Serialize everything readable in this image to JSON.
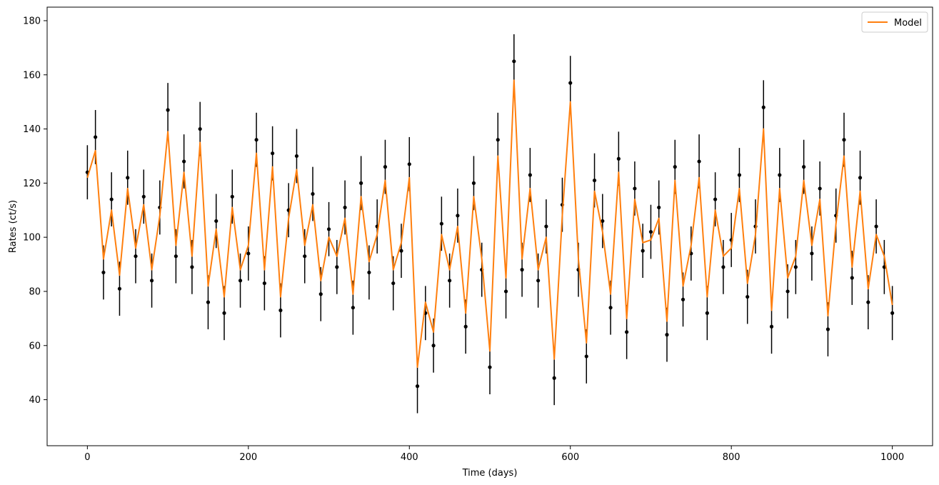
{
  "chart_data": {
    "type": "line",
    "title": "",
    "xlabel": "Time (days)",
    "ylabel": "Rates (ct/s)",
    "xlim": [
      -50,
      1050
    ],
    "ylim": [
      23,
      185
    ],
    "xticks": [
      0,
      200,
      400,
      600,
      800,
      1000
    ],
    "yticks": [
      40,
      60,
      80,
      100,
      120,
      140,
      160,
      180
    ],
    "x_tick_labels": [
      "0",
      "200",
      "400",
      "600",
      "800",
      "1000"
    ],
    "y_tick_labels": [
      "40",
      "60",
      "80",
      "100",
      "120",
      "140",
      "160",
      "180"
    ],
    "grid": false,
    "legend": {
      "placement": "top-right",
      "entries": [
        "Model"
      ]
    },
    "series": [
      {
        "name": "Model",
        "style": "line",
        "color": "#ff7f0e",
        "x": [
          0,
          10,
          20,
          30,
          40,
          50,
          60,
          70,
          80,
          90,
          100,
          110,
          120,
          130,
          140,
          150,
          160,
          170,
          180,
          190,
          200,
          210,
          220,
          230,
          240,
          250,
          260,
          270,
          280,
          290,
          300,
          310,
          320,
          330,
          340,
          350,
          360,
          370,
          380,
          390,
          400,
          410,
          420,
          430,
          440,
          450,
          460,
          470,
          480,
          490,
          500,
          510,
          520,
          530,
          540,
          550,
          560,
          570,
          580,
          590,
          600,
          610,
          620,
          630,
          640,
          650,
          660,
          670,
          680,
          690,
          700,
          710,
          720,
          730,
          740,
          750,
          760,
          770,
          780,
          790,
          800,
          810,
          820,
          830,
          840,
          850,
          860,
          870,
          880,
          890,
          900,
          910,
          920,
          930,
          940,
          950,
          960,
          970,
          980,
          990,
          1000
        ],
        "y": [
          122,
          132,
          92,
          110,
          86,
          118,
          96,
          112,
          88,
          108,
          139,
          97,
          124,
          93,
          135,
          82,
          103,
          78,
          111,
          88,
          97,
          131,
          88,
          126,
          78,
          107,
          125,
          97,
          112,
          84,
          100,
          93,
          107,
          79,
          115,
          91,
          101,
          121,
          88,
          98,
          122,
          52,
          76,
          65,
          101,
          88,
          104,
          72,
          115,
          92,
          58,
          130,
          85,
          158,
          92,
          118,
          88,
          100,
          55,
          108,
          150,
          92,
          61,
          117,
          102,
          79,
          124,
          70,
          114,
          98,
          99,
          107,
          69,
          121,
          82,
          97,
          122,
          78,
          110,
          93,
          96,
          118,
          83,
          101,
          140,
          73,
          118,
          85,
          93,
          121,
          97,
          114,
          71,
          105,
          130,
          89,
          117,
          81,
          101,
          93,
          75
        ]
      },
      {
        "name": "",
        "style": "errorbar",
        "color": "#000000",
        "x": [
          0,
          10,
          20,
          30,
          40,
          50,
          60,
          70,
          80,
          90,
          100,
          110,
          120,
          130,
          140,
          150,
          160,
          170,
          180,
          190,
          200,
          210,
          220,
          230,
          240,
          250,
          260,
          270,
          280,
          290,
          300,
          310,
          320,
          330,
          340,
          350,
          360,
          370,
          380,
          390,
          400,
          410,
          420,
          430,
          440,
          450,
          460,
          470,
          480,
          490,
          500,
          510,
          520,
          530,
          540,
          550,
          560,
          570,
          580,
          590,
          600,
          610,
          620,
          630,
          640,
          650,
          660,
          670,
          680,
          690,
          700,
          710,
          720,
          730,
          740,
          750,
          760,
          770,
          780,
          790,
          800,
          810,
          820,
          830,
          840,
          850,
          860,
          870,
          880,
          890,
          900,
          910,
          920,
          930,
          940,
          950,
          960,
          970,
          980,
          990,
          1000
        ],
        "y": [
          124,
          137,
          87,
          114,
          81,
          122,
          93,
          115,
          84,
          111,
          147,
          93,
          128,
          89,
          140,
          76,
          106,
          72,
          115,
          84,
          94,
          136,
          83,
          131,
          73,
          110,
          130,
          93,
          116,
          79,
          103,
          89,
          111,
          74,
          120,
          87,
          104,
          126,
          83,
          95,
          127,
          45,
          72,
          60,
          105,
          84,
          108,
          67,
          120,
          88,
          52,
          136,
          80,
          165,
          88,
          123,
          84,
          104,
          48,
          112,
          157,
          88,
          56,
          121,
          106,
          74,
          129,
          65,
          118,
          95,
          102,
          111,
          64,
          126,
          77,
          94,
          128,
          72,
          114,
          89,
          99,
          123,
          78,
          104,
          148,
          67,
          123,
          80,
          89,
          126,
          94,
          118,
          66,
          108,
          136,
          85,
          122,
          76,
          104,
          89,
          72
        ],
        "err": [
          10,
          10,
          10,
          10,
          10,
          10,
          10,
          10,
          10,
          10,
          10,
          10,
          10,
          10,
          10,
          10,
          10,
          10,
          10,
          10,
          10,
          10,
          10,
          10,
          10,
          10,
          10,
          10,
          10,
          10,
          10,
          10,
          10,
          10,
          10,
          10,
          10,
          10,
          10,
          10,
          10,
          10,
          10,
          10,
          10,
          10,
          10,
          10,
          10,
          10,
          10,
          10,
          10,
          10,
          10,
          10,
          10,
          10,
          10,
          10,
          10,
          10,
          10,
          10,
          10,
          10,
          10,
          10,
          10,
          10,
          10,
          10,
          10,
          10,
          10,
          10,
          10,
          10,
          10,
          10,
          10,
          10,
          10,
          10,
          10,
          10,
          10,
          10,
          10,
          10,
          10,
          10,
          10,
          10,
          10,
          10,
          10,
          10,
          10,
          10,
          10
        ]
      }
    ]
  }
}
